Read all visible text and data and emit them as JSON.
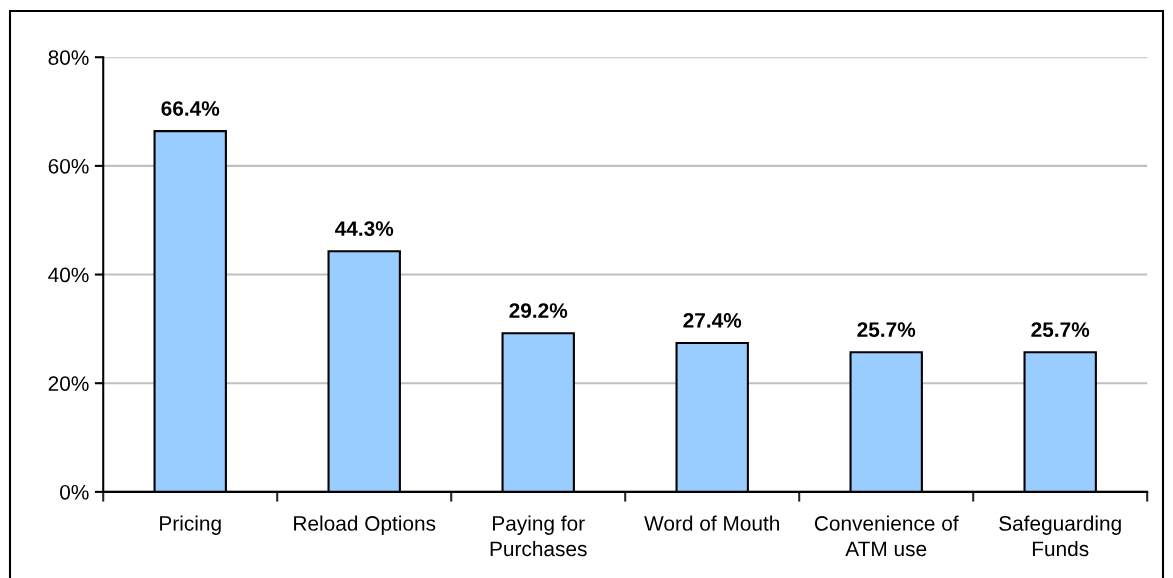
{
  "chart_data": {
    "type": "bar",
    "categories": [
      "Pricing",
      "Reload Options",
      "Paying for\nPurchases",
      "Word of Mouth",
      "Convenience of\nATM use",
      "Safeguarding\nFunds"
    ],
    "values": [
      66.4,
      44.3,
      29.2,
      27.4,
      25.7,
      25.7
    ],
    "value_labels": [
      "66.4%",
      "44.3%",
      "29.2%",
      "27.4%",
      "25.7%",
      "25.7%"
    ],
    "color": "#99ccff",
    "ylim": [
      0,
      80
    ],
    "yticks": [
      {
        "value": 0,
        "label": "0%"
      },
      {
        "value": 20,
        "label": "20%"
      },
      {
        "value": 40,
        "label": "40%"
      },
      {
        "value": 60,
        "label": "60%"
      },
      {
        "value": 80,
        "label": "80%"
      }
    ],
    "grid": "y"
  }
}
